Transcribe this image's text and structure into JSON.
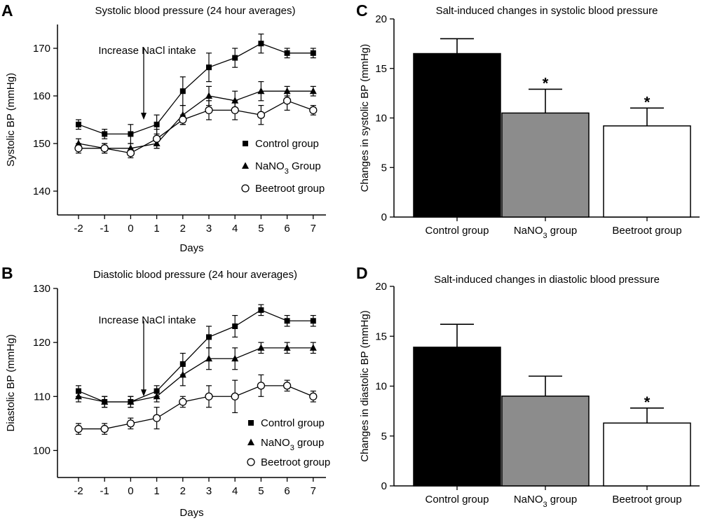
{
  "colors": {
    "ink": "#000000",
    "control": "#000000",
    "nano3": "#8c8c8c",
    "beetroot": "#ffffff",
    "background": "#ffffff"
  },
  "chart_data": [
    {
      "panel": "A",
      "type": "line",
      "title": "Systolic blood pressure (24 hour averages)",
      "xlabel": "Days",
      "ylabel": "Systolic BP (mmHg)",
      "x": [
        -2,
        -1,
        0,
        1,
        2,
        3,
        4,
        5,
        6,
        7
      ],
      "xticks": [
        "-2",
        "-1",
        "0",
        "1",
        "2",
        "3",
        "4",
        "5",
        "6",
        "7"
      ],
      "ylim": [
        135,
        175
      ],
      "yticks": [
        140,
        150,
        160,
        170
      ],
      "grid": false,
      "legend_position": "lower-right",
      "annotation": {
        "text": "Increase NaCl intake",
        "x": 0.5,
        "arrow_from": 170,
        "arrow_to": 155
      },
      "series": [
        {
          "name": "Control group",
          "marker": "square",
          "values": [
            154,
            152,
            152,
            154,
            161,
            166,
            168,
            171,
            169,
            169
          ],
          "errors": [
            1,
            1,
            2,
            2,
            3,
            3,
            2,
            2,
            1,
            1
          ]
        },
        {
          "name_parts": [
            "NaNO",
            "3",
            " Group"
          ],
          "marker": "triangle",
          "values": [
            150,
            149,
            149,
            150,
            156,
            160,
            159,
            161,
            161,
            161
          ],
          "errors": [
            1,
            1,
            1,
            1,
            2,
            2,
            2,
            2,
            1,
            1
          ]
        },
        {
          "name": "Beetroot group",
          "marker": "circle",
          "values": [
            149,
            149,
            148,
            151,
            155,
            157,
            157,
            156,
            159,
            157
          ],
          "errors": [
            1,
            1,
            1,
            2,
            1,
            2,
            2,
            2,
            2,
            1
          ]
        }
      ]
    },
    {
      "panel": "B",
      "type": "line",
      "title": "Diastolic blood pressure (24 hour averages)",
      "xlabel": "Days",
      "ylabel": "Diastolic BP (mmHg)",
      "x": [
        -2,
        -1,
        0,
        1,
        2,
        3,
        4,
        5,
        6,
        7
      ],
      "xticks": [
        "-2",
        "-1",
        "0",
        "1",
        "2",
        "3",
        "4",
        "5",
        "6",
        "7"
      ],
      "ylim": [
        95,
        130
      ],
      "yticks": [
        100,
        110,
        120,
        130
      ],
      "grid": false,
      "legend_position": "lower-right",
      "annotation": {
        "text": "Increase NaCl intake",
        "x": 0.5,
        "arrow_from": 124,
        "arrow_to": 110
      },
      "series": [
        {
          "name": "Control group",
          "marker": "square",
          "values": [
            111,
            109,
            109,
            111,
            116,
            121,
            123,
            126,
            124,
            124
          ],
          "errors": [
            1,
            1,
            1,
            1,
            2,
            2,
            2,
            1,
            1,
            1
          ]
        },
        {
          "name_parts": [
            "NaNO",
            "3",
            " group"
          ],
          "marker": "triangle",
          "values": [
            110,
            109,
            109,
            110,
            114,
            117,
            117,
            119,
            119,
            119
          ],
          "errors": [
            1,
            1,
            1,
            1,
            2,
            2,
            2,
            1,
            1,
            1
          ]
        },
        {
          "name": "Beetroot group",
          "marker": "circle",
          "values": [
            104,
            104,
            105,
            106,
            109,
            110,
            110,
            112,
            112,
            110
          ],
          "errors": [
            1,
            1,
            1,
            2,
            1,
            2,
            3,
            2,
            1,
            1
          ]
        }
      ]
    },
    {
      "panel": "C",
      "type": "bar",
      "title": "Salt-induced changes in systolic blood pressure",
      "xlabel": "",
      "ylabel": "Changes in systolic BP (mmHg)",
      "categories": [
        {
          "parts": [
            "Control group"
          ]
        },
        {
          "parts": [
            "NaNO",
            "3",
            " group"
          ]
        },
        {
          "parts": [
            "Beetroot group"
          ]
        }
      ],
      "values": [
        16.5,
        10.5,
        9.2
      ],
      "errors": [
        1.5,
        2.4,
        1.8
      ],
      "significance": [
        "",
        "*",
        "*"
      ],
      "ylim": [
        0,
        20
      ],
      "yticks": [
        0,
        5,
        10,
        15,
        20
      ],
      "grid": false
    },
    {
      "panel": "D",
      "type": "bar",
      "title": "Salt-induced changes in diastolic blood pressure",
      "xlabel": "",
      "ylabel": "Changes in diastolic BP (mmHg)",
      "categories": [
        {
          "parts": [
            "Control group"
          ]
        },
        {
          "parts": [
            "NaNO",
            "3",
            " group"
          ]
        },
        {
          "parts": [
            "Beetroot group"
          ]
        }
      ],
      "values": [
        13.9,
        9.0,
        6.3
      ],
      "errors": [
        2.3,
        2.0,
        1.5
      ],
      "significance": [
        "",
        "",
        "*"
      ],
      "ylim": [
        0,
        20
      ],
      "yticks": [
        0,
        5,
        10,
        15,
        20
      ],
      "grid": false
    }
  ]
}
